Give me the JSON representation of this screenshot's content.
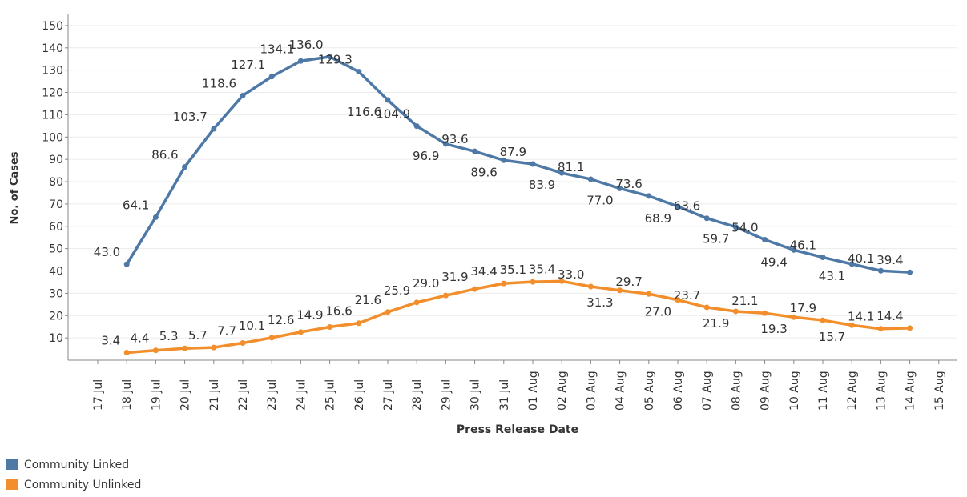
{
  "chart_data": {
    "type": "line",
    "x_label": "Press Release Date",
    "y_label": "No. of Cases",
    "categories": [
      "17 Jul",
      "18 Jul",
      "19 Jul",
      "20 Jul",
      "21 Jul",
      "22 Jul",
      "23 Jul",
      "24 Jul",
      "25 Jul",
      "26 Jul",
      "27 Jul",
      "28 Jul",
      "29 Jul",
      "30 Jul",
      "31 Jul",
      "01 Aug",
      "02 Aug",
      "03 Aug",
      "04 Aug",
      "05 Aug",
      "06 Aug",
      "07 Aug",
      "08 Aug",
      "09 Aug",
      "10 Aug",
      "11 Aug",
      "12 Aug",
      "13 Aug",
      "14 Aug",
      "15 Aug"
    ],
    "series": [
      {
        "name": "Community Linked",
        "color": "#4e79a7",
        "values": [
          null,
          43.0,
          64.1,
          86.6,
          103.7,
          118.6,
          127.1,
          134.1,
          136.0,
          129.3,
          116.6,
          104.9,
          96.9,
          93.6,
          89.6,
          87.9,
          83.9,
          81.1,
          77.0,
          73.6,
          68.9,
          63.6,
          59.7,
          54.0,
          49.4,
          46.1,
          43.1,
          40.1,
          39.4,
          null
        ],
        "value_labels": [
          null,
          "43.0",
          "64.1",
          "86.6",
          "103.7",
          "118.6",
          "127.1",
          "134.1",
          "136.0",
          "129.3",
          "116.6",
          "104.9",
          "96.9",
          "93.6",
          "89.6",
          "87.9",
          "83.9",
          "81.1",
          "77.0",
          "73.6",
          "68.9",
          "63.6",
          "59.7",
          "54.0",
          "49.4",
          "46.1",
          "43.1",
          "40.1",
          "39.4",
          null
        ]
      },
      {
        "name": "Community Unlinked",
        "color": "#f28e2b",
        "values": [
          null,
          3.4,
          4.4,
          5.3,
          5.7,
          7.7,
          10.1,
          12.6,
          14.9,
          16.6,
          21.6,
          25.9,
          29.0,
          31.9,
          34.4,
          35.1,
          35.4,
          33.0,
          31.3,
          29.7,
          27.0,
          23.7,
          21.9,
          21.1,
          19.3,
          17.9,
          15.7,
          14.1,
          14.4,
          null
        ],
        "value_labels": [
          null,
          "3.4",
          "4.4",
          "5.3",
          "5.7",
          "7.7",
          "10.1",
          "12.6",
          "14.9",
          "16.6",
          "21.6",
          "25.9",
          "29.0",
          "31.9",
          "34.4",
          "35.1",
          "35.4",
          "33.0",
          "31.3",
          "29.7",
          "27.0",
          "23.7",
          "21.9",
          "21.1",
          "19.3",
          "17.9",
          "15.7",
          "14.1",
          "14.4",
          null
        ]
      }
    ],
    "ylim": [
      0,
      155
    ],
    "yticks": [
      10,
      20,
      30,
      40,
      50,
      60,
      70,
      80,
      90,
      100,
      110,
      120,
      130,
      140,
      150
    ],
    "grid": true
  }
}
